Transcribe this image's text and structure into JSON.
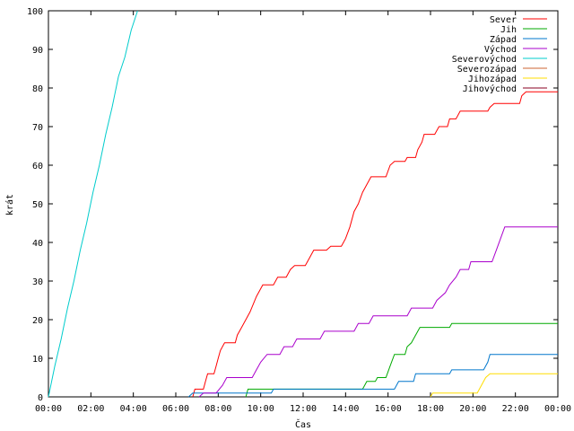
{
  "chart_data": {
    "type": "line",
    "xlabel": "Čas",
    "ylabel": "krát",
    "xlim": [
      0,
      24
    ],
    "ylim": [
      0,
      100
    ],
    "x_ticks": [
      0,
      2,
      4,
      6,
      8,
      10,
      12,
      14,
      16,
      18,
      20,
      22,
      24
    ],
    "x_tick_labels": [
      "00:00",
      "02:00",
      "04:00",
      "06:00",
      "08:00",
      "10:00",
      "12:00",
      "14:00",
      "16:00",
      "18:00",
      "20:00",
      "22:00",
      "00:00"
    ],
    "y_ticks": [
      0,
      10,
      20,
      30,
      40,
      50,
      60,
      70,
      80,
      90,
      100
    ],
    "grid": false,
    "legend_position": "top-right",
    "series": [
      {
        "name": "Sever",
        "color": "#ff0000",
        "points": [
          [
            6.8,
            0
          ],
          [
            6.9,
            2
          ],
          [
            7.3,
            2
          ],
          [
            7.4,
            4
          ],
          [
            7.5,
            6
          ],
          [
            7.8,
            6
          ],
          [
            7.9,
            8
          ],
          [
            8.0,
            10
          ],
          [
            8.1,
            12
          ],
          [
            8.3,
            14
          ],
          [
            8.8,
            14
          ],
          [
            8.9,
            16
          ],
          [
            9.1,
            18
          ],
          [
            9.3,
            20
          ],
          [
            9.5,
            22
          ],
          [
            9.8,
            26
          ],
          [
            10.1,
            29
          ],
          [
            10.6,
            29
          ],
          [
            10.8,
            31
          ],
          [
            11.2,
            31
          ],
          [
            11.4,
            33
          ],
          [
            11.6,
            34
          ],
          [
            12.1,
            34
          ],
          [
            12.3,
            36
          ],
          [
            12.5,
            38
          ],
          [
            13.1,
            38
          ],
          [
            13.3,
            39
          ],
          [
            13.8,
            39
          ],
          [
            14.0,
            41
          ],
          [
            14.2,
            44
          ],
          [
            14.4,
            48
          ],
          [
            14.6,
            50
          ],
          [
            14.8,
            53
          ],
          [
            15.0,
            55
          ],
          [
            15.2,
            57
          ],
          [
            15.9,
            57
          ],
          [
            16.1,
            60
          ],
          [
            16.3,
            61
          ],
          [
            16.8,
            61
          ],
          [
            16.9,
            62
          ],
          [
            17.3,
            62
          ],
          [
            17.4,
            64
          ],
          [
            17.6,
            66
          ],
          [
            17.7,
            68
          ],
          [
            18.2,
            68
          ],
          [
            18.4,
            70
          ],
          [
            18.8,
            70
          ],
          [
            18.9,
            72
          ],
          [
            19.2,
            72
          ],
          [
            19.4,
            74
          ],
          [
            20.7,
            74
          ],
          [
            20.8,
            75
          ],
          [
            21.0,
            76
          ],
          [
            22.2,
            76
          ],
          [
            22.3,
            78
          ],
          [
            22.5,
            79
          ],
          [
            24.0,
            79
          ]
        ]
      },
      {
        "name": "Jih",
        "color": "#00aa00",
        "points": [
          [
            9.3,
            0
          ],
          [
            9.4,
            2
          ],
          [
            10.4,
            2
          ],
          [
            14.8,
            2
          ],
          [
            15.0,
            4
          ],
          [
            15.4,
            4
          ],
          [
            15.5,
            5
          ],
          [
            15.9,
            5
          ],
          [
            16.1,
            8
          ],
          [
            16.3,
            11
          ],
          [
            16.8,
            11
          ],
          [
            16.9,
            13
          ],
          [
            17.1,
            14
          ],
          [
            17.3,
            16
          ],
          [
            17.5,
            18
          ],
          [
            18.9,
            18
          ],
          [
            19.0,
            19
          ],
          [
            24.0,
            19
          ]
        ]
      },
      {
        "name": "Západ",
        "color": "#0077cc",
        "points": [
          [
            6.6,
            0
          ],
          [
            6.8,
            1
          ],
          [
            10.5,
            1
          ],
          [
            10.6,
            2
          ],
          [
            16.3,
            2
          ],
          [
            16.5,
            4
          ],
          [
            17.2,
            4
          ],
          [
            17.3,
            6
          ],
          [
            18.9,
            6
          ],
          [
            19.0,
            7
          ],
          [
            20.5,
            7
          ],
          [
            20.7,
            9
          ],
          [
            20.8,
            11
          ],
          [
            24.0,
            11
          ]
        ]
      },
      {
        "name": "Východ",
        "color": "#aa00cc",
        "points": [
          [
            7.1,
            0
          ],
          [
            7.3,
            1
          ],
          [
            7.9,
            1
          ],
          [
            8.2,
            3
          ],
          [
            8.4,
            5
          ],
          [
            9.6,
            5
          ],
          [
            9.8,
            7
          ],
          [
            10.0,
            9
          ],
          [
            10.3,
            11
          ],
          [
            10.9,
            11
          ],
          [
            11.1,
            13
          ],
          [
            11.5,
            13
          ],
          [
            11.7,
            15
          ],
          [
            12.8,
            15
          ],
          [
            13.0,
            17
          ],
          [
            14.4,
            17
          ],
          [
            14.6,
            19
          ],
          [
            15.1,
            19
          ],
          [
            15.3,
            21
          ],
          [
            16.9,
            21
          ],
          [
            17.1,
            23
          ],
          [
            18.1,
            23
          ],
          [
            18.3,
            25
          ],
          [
            18.7,
            27
          ],
          [
            18.9,
            29
          ],
          [
            19.2,
            31
          ],
          [
            19.4,
            33
          ],
          [
            19.8,
            33
          ],
          [
            19.9,
            35
          ],
          [
            20.9,
            35
          ],
          [
            21.1,
            38
          ],
          [
            21.3,
            41
          ],
          [
            21.5,
            44
          ],
          [
            24.0,
            44
          ]
        ]
      },
      {
        "name": "Severovýchod",
        "color": "#00cccc",
        "points": [
          [
            0.0,
            0
          ],
          [
            0.3,
            8
          ],
          [
            0.6,
            15
          ],
          [
            0.9,
            23
          ],
          [
            1.2,
            30
          ],
          [
            1.5,
            38
          ],
          [
            1.8,
            45
          ],
          [
            2.1,
            53
          ],
          [
            2.4,
            60
          ],
          [
            2.7,
            68
          ],
          [
            3.0,
            75
          ],
          [
            3.3,
            83
          ],
          [
            3.6,
            88
          ],
          [
            3.9,
            95
          ],
          [
            4.2,
            100
          ]
        ]
      },
      {
        "name": "Severozápad",
        "color": "#cc6633",
        "points": []
      },
      {
        "name": "Jihozápad",
        "color": "#ffdd00",
        "points": [
          [
            18.0,
            0
          ],
          [
            18.1,
            1
          ],
          [
            20.2,
            1
          ],
          [
            20.4,
            3
          ],
          [
            20.6,
            5
          ],
          [
            20.8,
            6
          ],
          [
            24.0,
            6
          ]
        ]
      },
      {
        "name": "Jihovýchod",
        "color": "#880022",
        "points": []
      }
    ]
  }
}
